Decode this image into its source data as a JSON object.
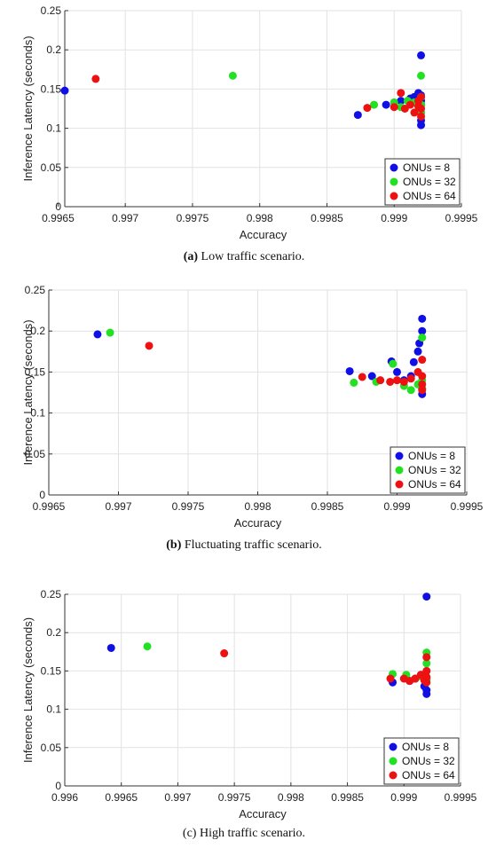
{
  "colors": {
    "onu8": "#1010e6",
    "onu32": "#22e022",
    "onu64": "#ee1111",
    "grid": "#e2e2e2"
  },
  "chart_data": [
    {
      "type": "scatter",
      "caption_label": "(a)",
      "caption_text": " Low traffic scenario.",
      "xlabel": "Accuracy",
      "ylabel": "Inference Latency (seconds)",
      "xlim": [
        0.99655,
        0.9995
      ],
      "ylim": [
        0,
        0.25
      ],
      "xticks": [
        "0.9965",
        "0.997",
        "0.9975",
        "0.998",
        "0.9985",
        "0.999",
        "0.9995"
      ],
      "xtick_values": [
        0.9965,
        0.997,
        0.9975,
        0.998,
        0.9985,
        0.999,
        0.9995
      ],
      "yticks": [
        "0",
        "0.05",
        "0.1",
        "0.15",
        "0.2",
        "0.25"
      ],
      "ytick_values": [
        0,
        0.05,
        0.1,
        0.15,
        0.2,
        0.25
      ],
      "grid": true,
      "legend_position": "bottom-right",
      "series": [
        {
          "name": "ONUs = 8",
          "color_key": "onu8",
          "points": [
            [
              0.99655,
              0.148
            ],
            [
              0.99873,
              0.117
            ],
            [
              0.99894,
              0.13
            ],
            [
              0.99905,
              0.135
            ],
            [
              0.99912,
              0.138
            ],
            [
              0.99915,
              0.14
            ],
            [
              0.99918,
              0.145
            ],
            [
              0.9992,
              0.193
            ],
            [
              0.9992,
              0.142
            ],
            [
              0.9992,
              0.13
            ],
            [
              0.9992,
              0.12
            ],
            [
              0.9992,
              0.11
            ],
            [
              0.9992,
              0.104
            ],
            [
              0.9992,
              0.135
            ]
          ]
        },
        {
          "name": "ONUs = 32",
          "color_key": "onu32",
          "points": [
            [
              0.9978,
              0.167
            ],
            [
              0.99885,
              0.13
            ],
            [
              0.999,
              0.133
            ],
            [
              0.99905,
              0.127
            ],
            [
              0.9991,
              0.135
            ],
            [
              0.99915,
              0.133
            ],
            [
              0.9992,
              0.167
            ],
            [
              0.9992,
              0.14
            ],
            [
              0.9992,
              0.13
            ],
            [
              0.9992,
              0.12
            ]
          ]
        },
        {
          "name": "ONUs = 64",
          "color_key": "onu64",
          "points": [
            [
              0.99678,
              0.163
            ],
            [
              0.9988,
              0.126
            ],
            [
              0.999,
              0.127
            ],
            [
              0.99905,
              0.145
            ],
            [
              0.99908,
              0.125
            ],
            [
              0.99912,
              0.13
            ],
            [
              0.99915,
              0.12
            ],
            [
              0.99918,
              0.135
            ],
            [
              0.9992,
              0.14
            ],
            [
              0.9992,
              0.125
            ],
            [
              0.9992,
              0.115
            ],
            [
              0.99918,
              0.128
            ]
          ]
        }
      ]
    },
    {
      "type": "scatter",
      "caption_label": "(b)",
      "caption_text": " Fluctuating traffic scenario.",
      "xlabel": "Accuracy",
      "ylabel": "Inference Latency (seconds)",
      "xlim": [
        0.9965,
        0.9995
      ],
      "ylim": [
        0,
        0.25
      ],
      "xticks": [
        "0.9965",
        "0.997",
        "0.9975",
        "0.998",
        "0.9985",
        "0.999",
        "0.9995"
      ],
      "xtick_values": [
        0.9965,
        0.997,
        0.9975,
        0.998,
        0.9985,
        0.999,
        0.9995
      ],
      "yticks": [
        "0",
        "0.05",
        "0.1",
        "0.15",
        "0.2",
        "0.25"
      ],
      "ytick_values": [
        0,
        0.05,
        0.1,
        0.15,
        0.2,
        0.25
      ],
      "grid": true,
      "legend_position": "bottom-right",
      "series": [
        {
          "name": "ONUs = 8",
          "color_key": "onu8",
          "points": [
            [
              0.99685,
              0.196
            ],
            [
              0.99866,
              0.151
            ],
            [
              0.99882,
              0.145
            ],
            [
              0.99896,
              0.163
            ],
            [
              0.999,
              0.15
            ],
            [
              0.99905,
              0.14
            ],
            [
              0.9991,
              0.145
            ],
            [
              0.99912,
              0.162
            ],
            [
              0.99915,
              0.175
            ],
            [
              0.99916,
              0.185
            ],
            [
              0.99918,
              0.215
            ],
            [
              0.99918,
              0.2
            ],
            [
              0.99918,
              0.13
            ],
            [
              0.99918,
              0.123
            ]
          ]
        },
        {
          "name": "ONUs = 32",
          "color_key": "onu32",
          "points": [
            [
              0.99694,
              0.198
            ],
            [
              0.99869,
              0.137
            ],
            [
              0.99885,
              0.138
            ],
            [
              0.99897,
              0.16
            ],
            [
              0.99905,
              0.133
            ],
            [
              0.9991,
              0.128
            ],
            [
              0.99915,
              0.135
            ],
            [
              0.99918,
              0.192
            ],
            [
              0.99918,
              0.14
            ],
            [
              0.99918,
              0.13
            ]
          ]
        },
        {
          "name": "ONUs = 64",
          "color_key": "onu64",
          "points": [
            [
              0.99722,
              0.182
            ],
            [
              0.99875,
              0.144
            ],
            [
              0.99888,
              0.14
            ],
            [
              0.99895,
              0.138
            ],
            [
              0.999,
              0.14
            ],
            [
              0.99905,
              0.138
            ],
            [
              0.9991,
              0.142
            ],
            [
              0.99915,
              0.15
            ],
            [
              0.99918,
              0.165
            ],
            [
              0.99918,
              0.145
            ],
            [
              0.99918,
              0.135
            ],
            [
              0.99918,
              0.128
            ]
          ]
        }
      ]
    },
    {
      "type": "scatter",
      "caption_label": "(c)",
      "caption_text": " High traffic scenario.",
      "xlabel": "Accuracy",
      "ylabel": "Inference Latency (seconds)",
      "xlim": [
        0.996,
        0.9995
      ],
      "ylim": [
        0,
        0.25
      ],
      "xticks": [
        "0.996",
        "0.9965",
        "0.997",
        "0.9975",
        "0.998",
        "0.9985",
        "0.999",
        "0.9995"
      ],
      "xtick_values": [
        0.996,
        0.9965,
        0.997,
        0.9975,
        0.998,
        0.9985,
        0.999,
        0.9995
      ],
      "yticks": [
        "0",
        "0.05",
        "0.1",
        "0.15",
        "0.2",
        "0.25"
      ],
      "ytick_values": [
        0,
        0.05,
        0.1,
        0.15,
        0.2,
        0.25
      ],
      "grid": true,
      "legend_position": "bottom-right",
      "series": [
        {
          "name": "ONUs = 8",
          "color_key": "onu8",
          "points": [
            [
              0.99641,
              0.18
            ],
            [
              0.9989,
              0.135
            ],
            [
              0.99905,
              0.137
            ],
            [
              0.9991,
              0.14
            ],
            [
              0.99915,
              0.145
            ],
            [
              0.99918,
              0.13
            ],
            [
              0.9992,
              0.247
            ],
            [
              0.9992,
              0.125
            ],
            [
              0.9992,
              0.12
            ],
            [
              0.9992,
              0.14
            ]
          ]
        },
        {
          "name": "ONUs = 32",
          "color_key": "onu32",
          "points": [
            [
              0.99673,
              0.182
            ],
            [
              0.9989,
              0.146
            ],
            [
              0.99902,
              0.145
            ],
            [
              0.9991,
              0.14
            ],
            [
              0.99915,
              0.143
            ],
            [
              0.9992,
              0.174
            ],
            [
              0.9992,
              0.16
            ],
            [
              0.9992,
              0.15
            ],
            [
              0.9992,
              0.138
            ]
          ]
        },
        {
          "name": "ONUs = 64",
          "color_key": "onu64",
          "points": [
            [
              0.99741,
              0.173
            ],
            [
              0.99888,
              0.14
            ],
            [
              0.999,
              0.14
            ],
            [
              0.99905,
              0.137
            ],
            [
              0.9991,
              0.14
            ],
            [
              0.99915,
              0.145
            ],
            [
              0.99918,
              0.138
            ],
            [
              0.9992,
              0.168
            ],
            [
              0.9992,
              0.15
            ],
            [
              0.9992,
              0.142
            ],
            [
              0.9992,
              0.135
            ]
          ]
        }
      ]
    }
  ]
}
